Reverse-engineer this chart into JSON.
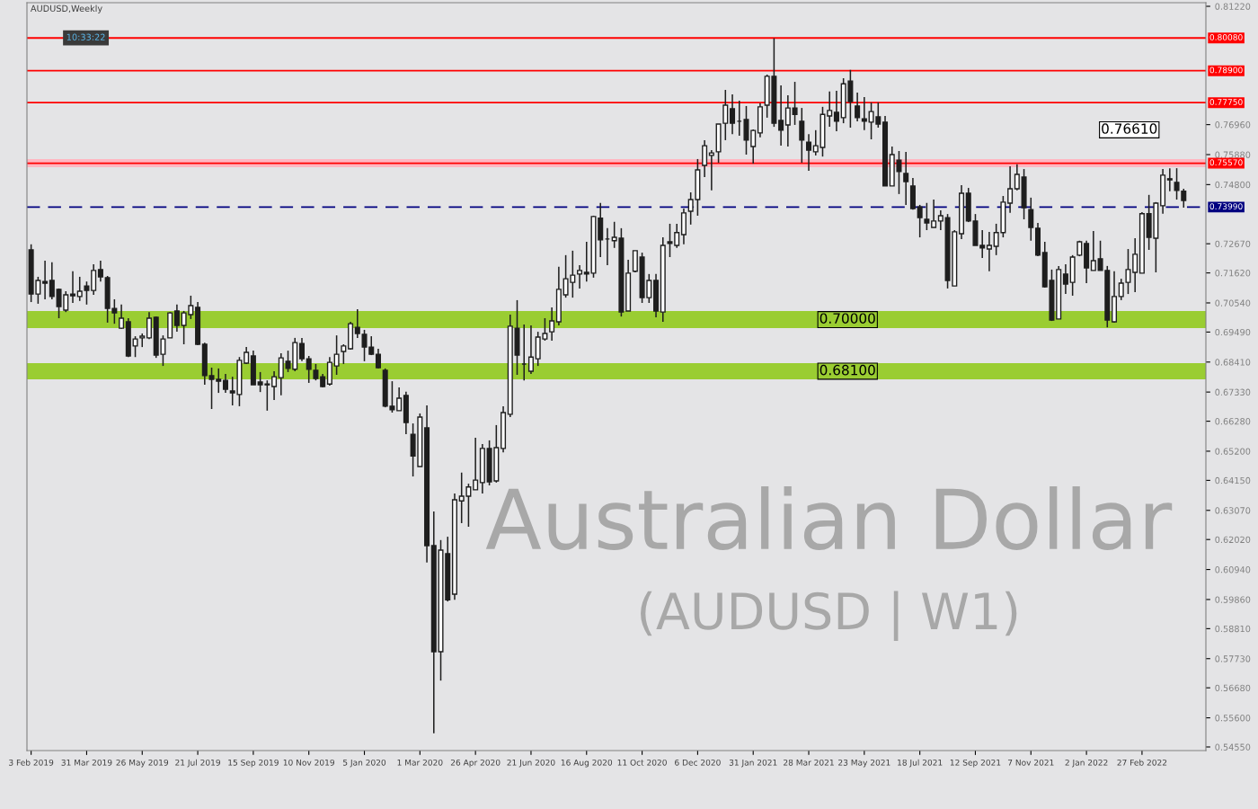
{
  "chart_data": {
    "type": "candlestick",
    "title": "AUDUSD,Weekly",
    "categories": [
      "3 Feb 2019",
      null,
      null,
      null,
      null,
      null,
      null,
      null,
      "31 Mar 2019",
      null,
      null,
      null,
      null,
      null,
      null,
      null,
      "26 May 2019",
      null,
      null,
      null,
      null,
      null,
      null,
      null,
      "21 Jul 2019",
      null,
      null,
      null,
      null,
      null,
      null,
      null,
      "15 Sep 2019",
      null,
      null,
      null,
      null,
      null,
      null,
      null,
      "10 Nov 2019",
      null,
      null,
      null,
      null,
      null,
      null,
      null,
      "5 Jan 2020",
      null,
      null,
      null,
      null,
      null,
      null,
      null,
      "1 Mar 2020",
      null,
      null,
      null,
      null,
      null,
      null,
      null,
      "26 Apr 2020",
      null,
      null,
      null,
      null,
      null,
      null,
      null,
      "21 Jun 2020",
      null,
      null,
      null,
      null,
      null,
      null,
      null,
      "16 Aug 2020",
      null,
      null,
      null,
      null,
      null,
      null,
      null,
      "11 Oct 2020",
      null,
      null,
      null,
      null,
      null,
      null,
      null,
      "6 Dec 2020",
      null,
      null,
      null,
      null,
      null,
      null,
      null,
      "31 Jan 2021",
      null,
      null,
      null,
      null,
      null,
      null,
      null,
      "28 Mar 2021",
      null,
      null,
      null,
      null,
      null,
      null,
      null,
      "23 May 2021",
      null,
      null,
      null,
      null,
      null,
      null,
      null,
      "18 Jul 2021",
      null,
      null,
      null,
      null,
      null,
      null,
      null,
      "12 Sep 2021",
      null,
      null,
      null,
      null,
      null,
      null,
      null,
      "7 Nov 2021",
      null,
      null,
      null,
      null,
      null,
      null,
      null,
      "2 Jan 2022",
      null,
      null,
      null,
      null,
      null,
      null,
      null,
      "27 Feb 2022",
      null,
      null,
      null,
      null,
      null,
      null
    ],
    "ohlc": [
      [
        0.7245,
        0.7265,
        0.7057,
        0.7086
      ],
      [
        0.7086,
        0.7148,
        0.7051,
        0.7135
      ],
      [
        0.7131,
        0.7206,
        0.7067,
        0.7125
      ],
      [
        0.7135,
        0.72,
        0.7067,
        0.7077
      ],
      [
        0.7103,
        0.7106,
        0.6999,
        0.7041
      ],
      [
        0.7028,
        0.7096,
        0.7021,
        0.7083
      ],
      [
        0.7086,
        0.7168,
        0.7054,
        0.708
      ],
      [
        0.7077,
        0.7148,
        0.7061,
        0.7096
      ],
      [
        0.7115,
        0.7131,
        0.7048,
        0.7099
      ],
      [
        0.7099,
        0.7193,
        0.7083,
        0.7171
      ],
      [
        0.7174,
        0.7206,
        0.7131,
        0.7148
      ],
      [
        0.7145,
        0.7151,
        0.6983,
        0.7034
      ],
      [
        0.7034,
        0.7067,
        0.6979,
        0.7018
      ],
      [
        0.6963,
        0.7048,
        0.696,
        0.6999
      ],
      [
        0.6986,
        0.6999,
        0.6859,
        0.6863
      ],
      [
        0.6899,
        0.6934,
        0.6859,
        0.6924
      ],
      [
        0.6928,
        0.6944,
        0.6895,
        0.6934
      ],
      [
        0.6928,
        0.7021,
        0.6924,
        0.6999
      ],
      [
        0.7002,
        0.7005,
        0.6856,
        0.6866
      ],
      [
        0.6869,
        0.6937,
        0.6827,
        0.6924
      ],
      [
        0.6928,
        0.7021,
        0.6928,
        0.7018
      ],
      [
        0.7025,
        0.7048,
        0.695,
        0.6973
      ],
      [
        0.6973,
        0.7025,
        0.6905,
        0.7018
      ],
      [
        0.7012,
        0.708,
        0.6996,
        0.7044
      ],
      [
        0.7038,
        0.7057,
        0.6902,
        0.6905
      ],
      [
        0.6905,
        0.6911,
        0.6759,
        0.6792
      ],
      [
        0.6792,
        0.6821,
        0.6672,
        0.6779
      ],
      [
        0.6779,
        0.6818,
        0.673,
        0.6772
      ],
      [
        0.6775,
        0.6798,
        0.673,
        0.6743
      ],
      [
        0.6737,
        0.6788,
        0.6685,
        0.673
      ],
      [
        0.6724,
        0.6859,
        0.6682,
        0.6847
      ],
      [
        0.6837,
        0.6895,
        0.6834,
        0.6876
      ],
      [
        0.6863,
        0.6882,
        0.6759,
        0.6759
      ],
      [
        0.6769,
        0.6805,
        0.6733,
        0.6759
      ],
      [
        0.6762,
        0.6775,
        0.6666,
        0.6759
      ],
      [
        0.6753,
        0.6808,
        0.6704,
        0.6788
      ],
      [
        0.6785,
        0.6873,
        0.6721,
        0.6856
      ],
      [
        0.6844,
        0.6882,
        0.6805,
        0.6818
      ],
      [
        0.6815,
        0.6928,
        0.6808,
        0.6911
      ],
      [
        0.6908,
        0.6928,
        0.6844,
        0.6853
      ],
      [
        0.6853,
        0.6863,
        0.6766,
        0.6815
      ],
      [
        0.6811,
        0.6834,
        0.6775,
        0.6782
      ],
      [
        0.6788,
        0.6798,
        0.675,
        0.6753
      ],
      [
        0.6762,
        0.6859,
        0.6756,
        0.684
      ],
      [
        0.6827,
        0.6937,
        0.6795,
        0.6869
      ],
      [
        0.6879,
        0.6905,
        0.6834,
        0.6899
      ],
      [
        0.6889,
        0.6986,
        0.6886,
        0.6979
      ],
      [
        0.6966,
        0.7031,
        0.6928,
        0.6944
      ],
      [
        0.6941,
        0.6957,
        0.6844,
        0.6895
      ],
      [
        0.6895,
        0.6934,
        0.6866,
        0.6869
      ],
      [
        0.6869,
        0.6889,
        0.6818,
        0.6821
      ],
      [
        0.6811,
        0.6818,
        0.6678,
        0.6682
      ],
      [
        0.6682,
        0.6772,
        0.6659,
        0.6669
      ],
      [
        0.6666,
        0.675,
        0.6666,
        0.6711
      ],
      [
        0.6721,
        0.6734,
        0.6581,
        0.6623
      ],
      [
        0.6581,
        0.662,
        0.6429,
        0.6503
      ],
      [
        0.6465,
        0.6656,
        0.6465,
        0.6643
      ],
      [
        0.6604,
        0.6685,
        0.6119,
        0.618
      ],
      [
        0.618,
        0.6303,
        0.5504,
        0.5798
      ],
      [
        0.5798,
        0.62,
        0.5694,
        0.6164
      ],
      [
        0.6151,
        0.6212,
        0.5979,
        0.5985
      ],
      [
        0.6005,
        0.6368,
        0.5985,
        0.6345
      ],
      [
        0.6341,
        0.6443,
        0.6261,
        0.6358
      ],
      [
        0.6358,
        0.6403,
        0.6248,
        0.6391
      ],
      [
        0.6381,
        0.6568,
        0.6381,
        0.6416
      ],
      [
        0.6407,
        0.6546,
        0.6368,
        0.653
      ],
      [
        0.653,
        0.6559,
        0.6397,
        0.641
      ],
      [
        0.6413,
        0.6614,
        0.6407,
        0.6533
      ],
      [
        0.653,
        0.6682,
        0.6516,
        0.6659
      ],
      [
        0.6653,
        0.7012,
        0.6643,
        0.697
      ],
      [
        0.6963,
        0.7064,
        0.6795,
        0.6866
      ],
      [
        0.6834,
        0.6976,
        0.6775,
        0.6834
      ],
      [
        0.6808,
        0.6973,
        0.6798,
        0.6859
      ],
      [
        0.6853,
        0.695,
        0.6827,
        0.6931
      ],
      [
        0.6924,
        0.6999,
        0.6918,
        0.6944
      ],
      [
        0.695,
        0.7038,
        0.6918,
        0.6989
      ],
      [
        0.6986,
        0.7184,
        0.6973,
        0.7103
      ],
      [
        0.7083,
        0.7226,
        0.7073,
        0.7141
      ],
      [
        0.7128,
        0.7242,
        0.7073,
        0.7154
      ],
      [
        0.7158,
        0.719,
        0.7106,
        0.7171
      ],
      [
        0.7164,
        0.7274,
        0.7131,
        0.7158
      ],
      [
        0.7161,
        0.7368,
        0.7145,
        0.7365
      ],
      [
        0.7359,
        0.7414,
        0.7219,
        0.7281
      ],
      [
        0.7284,
        0.7323,
        0.719,
        0.7284
      ],
      [
        0.7278,
        0.7346,
        0.7252,
        0.729
      ],
      [
        0.7287,
        0.7323,
        0.7005,
        0.7021
      ],
      [
        0.7025,
        0.7209,
        0.7025,
        0.7161
      ],
      [
        0.7168,
        0.7242,
        0.7164,
        0.7242
      ],
      [
        0.7219,
        0.7235,
        0.7054,
        0.7073
      ],
      [
        0.7073,
        0.7158,
        0.7054,
        0.7135
      ],
      [
        0.7135,
        0.7158,
        0.7002,
        0.7025
      ],
      [
        0.7021,
        0.729,
        0.6986,
        0.7261
      ],
      [
        0.7274,
        0.7339,
        0.7219,
        0.7268
      ],
      [
        0.7261,
        0.7339,
        0.7252,
        0.7307
      ],
      [
        0.73,
        0.7394,
        0.7265,
        0.7378
      ],
      [
        0.7384,
        0.7452,
        0.7336,
        0.7426
      ],
      [
        0.7426,
        0.7572,
        0.7368,
        0.7533
      ],
      [
        0.7549,
        0.764,
        0.7507,
        0.762
      ],
      [
        0.7585,
        0.7604,
        0.7459,
        0.7594
      ],
      [
        0.7598,
        0.7698,
        0.7559,
        0.7698
      ],
      [
        0.7701,
        0.7821,
        0.764,
        0.7766
      ],
      [
        0.7753,
        0.7805,
        0.7662,
        0.7701
      ],
      [
        0.7708,
        0.7782,
        0.7656,
        0.7708
      ],
      [
        0.7714,
        0.7763,
        0.7588,
        0.764
      ],
      [
        0.7617,
        0.7679,
        0.7556,
        0.7675
      ],
      [
        0.7666,
        0.7773,
        0.765,
        0.776
      ],
      [
        0.7766,
        0.7876,
        0.7721,
        0.787
      ],
      [
        0.787,
        0.8007,
        0.7688,
        0.7701
      ],
      [
        0.7711,
        0.7837,
        0.762,
        0.7676
      ],
      [
        0.7695,
        0.7802,
        0.7617,
        0.7756
      ],
      [
        0.7756,
        0.785,
        0.7695,
        0.7733
      ],
      [
        0.7708,
        0.7756,
        0.7559,
        0.764
      ],
      [
        0.7633,
        0.7662,
        0.753,
        0.7604
      ],
      [
        0.7598,
        0.7676,
        0.7585,
        0.762
      ],
      [
        0.7614,
        0.776,
        0.7581,
        0.7733
      ],
      [
        0.7727,
        0.7815,
        0.7688,
        0.7747
      ],
      [
        0.774,
        0.7818,
        0.7672,
        0.7708
      ],
      [
        0.7721,
        0.7863,
        0.7701,
        0.7843
      ],
      [
        0.7853,
        0.7893,
        0.7685,
        0.7779
      ],
      [
        0.7763,
        0.7811,
        0.7708,
        0.7721
      ],
      [
        0.7717,
        0.7795,
        0.7676,
        0.7708
      ],
      [
        0.7705,
        0.7776,
        0.7643,
        0.7743
      ],
      [
        0.7724,
        0.7776,
        0.7685,
        0.7698
      ],
      [
        0.7705,
        0.7727,
        0.7475,
        0.7475
      ],
      [
        0.7475,
        0.7617,
        0.7475,
        0.7588
      ],
      [
        0.7568,
        0.7601,
        0.7446,
        0.7527
      ],
      [
        0.752,
        0.7598,
        0.7407,
        0.7491
      ],
      [
        0.7475,
        0.7504,
        0.739,
        0.7394
      ],
      [
        0.74,
        0.7407,
        0.729,
        0.7361
      ],
      [
        0.7355,
        0.7414,
        0.7316,
        0.7342
      ],
      [
        0.7326,
        0.7426,
        0.7326,
        0.7349
      ],
      [
        0.7349,
        0.7387,
        0.7316,
        0.7368
      ],
      [
        0.7361,
        0.7374,
        0.7106,
        0.7135
      ],
      [
        0.7115,
        0.7316,
        0.7115,
        0.731
      ],
      [
        0.7303,
        0.7478,
        0.7284,
        0.7449
      ],
      [
        0.7449,
        0.7468,
        0.7345,
        0.7349
      ],
      [
        0.7349,
        0.7374,
        0.7261,
        0.7261
      ],
      [
        0.7261,
        0.7316,
        0.7216,
        0.7252
      ],
      [
        0.7248,
        0.731,
        0.7168,
        0.7261
      ],
      [
        0.7258,
        0.7339,
        0.7226,
        0.7307
      ],
      [
        0.7307,
        0.7439,
        0.729,
        0.7417
      ],
      [
        0.7413,
        0.7546,
        0.7378,
        0.7465
      ],
      [
        0.7465,
        0.7553,
        0.7459,
        0.7517
      ],
      [
        0.7507,
        0.7536,
        0.7355,
        0.7397
      ],
      [
        0.739,
        0.7433,
        0.7278,
        0.7326
      ],
      [
        0.7323,
        0.7342,
        0.7222,
        0.7226
      ],
      [
        0.7235,
        0.7274,
        0.7109,
        0.7112
      ],
      [
        0.7135,
        0.7174,
        0.6989,
        0.6992
      ],
      [
        0.6996,
        0.7187,
        0.6996,
        0.7174
      ],
      [
        0.7158,
        0.7193,
        0.7086,
        0.7122
      ],
      [
        0.7128,
        0.7226,
        0.708,
        0.7219
      ],
      [
        0.7226,
        0.7278,
        0.7222,
        0.7274
      ],
      [
        0.7268,
        0.7278,
        0.7125,
        0.718
      ],
      [
        0.7171,
        0.7313,
        0.7171,
        0.7206
      ],
      [
        0.7213,
        0.7278,
        0.7171,
        0.7171
      ],
      [
        0.7171,
        0.7187,
        0.6966,
        0.6992
      ],
      [
        0.6986,
        0.7168,
        0.6983,
        0.7077
      ],
      [
        0.7077,
        0.7141,
        0.7064,
        0.7125
      ],
      [
        0.7128,
        0.7248,
        0.7086,
        0.7174
      ],
      [
        0.7164,
        0.7287,
        0.7093,
        0.7229
      ],
      [
        0.7161,
        0.7381,
        0.7161,
        0.7375
      ],
      [
        0.7375,
        0.7443,
        0.7245,
        0.729
      ],
      [
        0.7287,
        0.7417,
        0.7164,
        0.7413
      ],
      [
        0.7404,
        0.7536,
        0.7375,
        0.7514
      ],
      [
        0.7501,
        0.7539,
        0.7456,
        0.7497
      ],
      [
        0.7488,
        0.7539,
        0.7426,
        0.7459
      ],
      [
        0.7456,
        0.7465,
        0.7397,
        0.7423
      ]
    ],
    "ylim": [
      0.5442,
      0.8135
    ],
    "yticks": [
      {
        "value": 0.8122,
        "label": "0.81220"
      },
      {
        "value": 0.7696,
        "label": "0.76960"
      },
      {
        "value": 0.7588,
        "label": "0.75880"
      },
      {
        "value": 0.748,
        "label": "0.74800"
      },
      {
        "value": 0.7267,
        "label": "0.72670"
      },
      {
        "value": 0.7162,
        "label": "0.71620"
      },
      {
        "value": 0.7054,
        "label": "0.70540"
      },
      {
        "value": 0.6949,
        "label": "0.69490"
      },
      {
        "value": 0.6841,
        "label": "0.68410"
      },
      {
        "value": 0.6733,
        "label": "0.67330"
      },
      {
        "value": 0.6628,
        "label": "0.66280"
      },
      {
        "value": 0.652,
        "label": "0.65200"
      },
      {
        "value": 0.6415,
        "label": "0.64150"
      },
      {
        "value": 0.6307,
        "label": "0.63070"
      },
      {
        "value": 0.6202,
        "label": "0.62020"
      },
      {
        "value": 0.6094,
        "label": "0.60940"
      },
      {
        "value": 0.5986,
        "label": "0.59860"
      },
      {
        "value": 0.5881,
        "label": "0.58810"
      },
      {
        "value": 0.5773,
        "label": "0.57730"
      },
      {
        "value": 0.5668,
        "label": "0.56680"
      },
      {
        "value": 0.556,
        "label": "0.55600"
      },
      {
        "value": 0.5455,
        "label": "0.54550"
      }
    ],
    "ref_lines": [
      {
        "axis": "y",
        "value": 0.8008,
        "label": "0.80080",
        "color": "#ff0000"
      },
      {
        "axis": "y",
        "value": 0.789,
        "label": "0.78900",
        "color": "#ff0000"
      },
      {
        "axis": "y",
        "value": 0.7775,
        "label": "0.77750",
        "color": "#ff0000"
      },
      {
        "axis": "y",
        "value": 0.7557,
        "label": "0.75570",
        "color": "#ff0000"
      },
      {
        "axis": "y",
        "value": 0.7399,
        "label": "0.73990",
        "color": "#000080",
        "line_style": "dashed"
      }
    ],
    "bands": [
      {
        "axis": "y",
        "from": 0.6963,
        "to": 0.7025,
        "label": "0.70000",
        "color": "#9acd32"
      },
      {
        "axis": "y",
        "from": 0.6779,
        "to": 0.6837,
        "label": "0.68100",
        "color": "#9acd32"
      },
      {
        "axis": "y",
        "from": 0.7543,
        "to": 0.7572,
        "label": null,
        "color": "#ffb6c1"
      }
    ],
    "annotations": [
      "Australian Dollar",
      "(AUDUSD | W1)",
      "10:33:22",
      "0.76610"
    ],
    "grid": false,
    "legend": false
  }
}
